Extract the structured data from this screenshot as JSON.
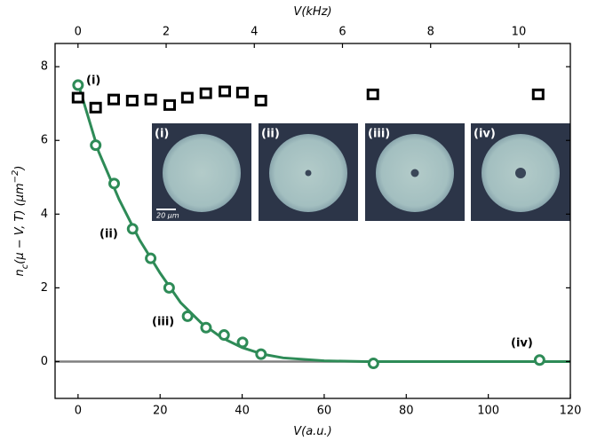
{
  "chart_data": {
    "type": "scatter",
    "xlabel": [
      {
        "text": "V",
        "italic": true
      },
      {
        "text": "(a.u.)",
        "italic": true
      }
    ],
    "x2label": [
      {
        "text": "V",
        "italic": true
      },
      {
        "text": "(kHz)",
        "italic": true
      }
    ],
    "ylabel": [
      {
        "text": "n",
        "italic": true
      },
      {
        "text": "c",
        "sub": true,
        "italic": true
      },
      {
        "text": "(μ − V, T) (μm",
        "italic": true
      },
      {
        "text": "−2",
        "sup": true,
        "italic": true
      },
      {
        "text": ")",
        "italic": true
      }
    ],
    "xlim": [
      -5.6,
      120
    ],
    "xticks": [
      0,
      20,
      40,
      60,
      80,
      100,
      120
    ],
    "x2lim": [
      -0.52,
      11.17
    ],
    "x2ticks": [
      0,
      2,
      4,
      6,
      8,
      10
    ],
    "ylim": [
      -1,
      8.63
    ],
    "yticks": [
      0,
      2,
      4,
      6,
      8
    ],
    "hline": 0,
    "hline_color": "#808080",
    "series": [
      {
        "style": "line",
        "color": "#2e8b57",
        "x": [
          0,
          5,
          10,
          15,
          20,
          25,
          30,
          35,
          40,
          45,
          50,
          60,
          70,
          80,
          120
        ],
        "values": [
          7.55,
          5.7,
          4.4,
          3.3,
          2.4,
          1.6,
          1.05,
          0.65,
          0.38,
          0.2,
          0.1,
          0.02,
          0,
          0,
          0
        ]
      },
      {
        "style": "circle",
        "color": "#2e8b57",
        "x": [
          0,
          4.3,
          8.8,
          13.3,
          17.7,
          22.2,
          26.7,
          31.2,
          35.6,
          40.1,
          44.6,
          72,
          112.5
        ],
        "values": [
          7.5,
          5.87,
          4.83,
          3.6,
          2.8,
          2.0,
          1.23,
          0.92,
          0.72,
          0.52,
          0.2,
          -0.05,
          0.04
        ]
      },
      {
        "style": "square",
        "color": "#000000",
        "axis": "x2",
        "x": [
          0,
          0.4,
          0.81,
          1.23,
          1.65,
          2.08,
          2.48,
          2.9,
          3.33,
          3.73,
          4.15,
          6.69,
          10.44
        ],
        "values": [
          7.16,
          6.89,
          7.11,
          7.08,
          7.11,
          6.96,
          7.16,
          7.28,
          7.33,
          7.3,
          7.08,
          7.25,
          7.25
        ]
      }
    ],
    "annotations": [
      "(i)",
      "(ii)",
      "(iii)",
      "(iv)"
    ],
    "insets": [
      {
        "label": "(i)",
        "hole": false
      },
      {
        "label": "(ii)",
        "hole": true
      },
      {
        "label": "(iii)",
        "hole": true
      },
      {
        "label": "(iv)",
        "hole": true
      }
    ],
    "scale_bar": "20 μm"
  }
}
